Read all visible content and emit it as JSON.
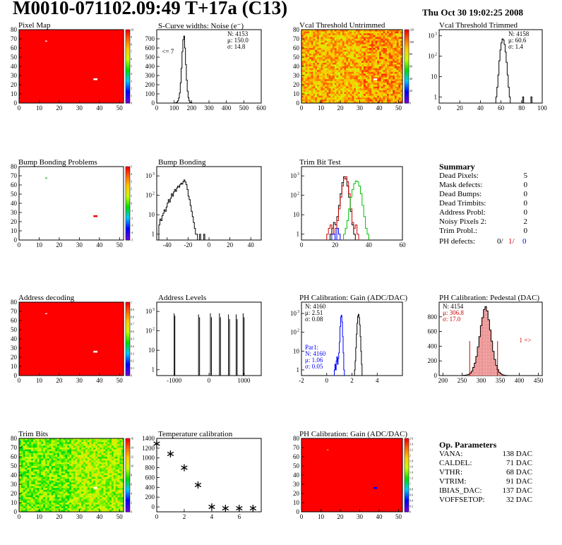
{
  "header": {
    "title": "M0010-071102.09:49 T+17a (C13)",
    "date": "Thu Oct 30 19:02:25 2008"
  },
  "colors": {
    "black": "#000000",
    "red": "#d00000",
    "green": "#00c000",
    "blue": "#0000ff"
  },
  "summary": {
    "title": "Summary",
    "rows": [
      {
        "label": "Dead Pixels:",
        "value": "5"
      },
      {
        "label": "Mask defects:",
        "value": "0"
      },
      {
        "label": "Dead Bumps:",
        "value": "0"
      },
      {
        "label": "Dead Trimbits:",
        "value": "0"
      },
      {
        "label": "Address Probl:",
        "value": "0"
      },
      {
        "label": "Noisy Pixels 2:",
        "value": "2"
      },
      {
        "label": "Trim Probl.:",
        "value": "0"
      }
    ],
    "ph_defects": {
      "label": "PH defects:",
      "v1": "0/",
      "v2": "1/",
      "v3": "0"
    }
  },
  "op_params": {
    "title": "Op. Parameters",
    "rows": [
      {
        "label": "VANA:",
        "value": "138 DAC"
      },
      {
        "label": "CALDEL:",
        "value": "71 DAC"
      },
      {
        "label": "VTHR:",
        "value": "68 DAC"
      },
      {
        "label": "VTRIM:",
        "value": "91 DAC"
      },
      {
        "label": "IBIAS_DAC:",
        "value": "137 DAC"
      },
      {
        "label": "VOFFSETOP:",
        "value": "32 DAC"
      }
    ]
  },
  "chart_data": [
    {
      "id": "pixel-map",
      "type": "heatmap",
      "title": "Pixel Map",
      "xlim": [
        0,
        52
      ],
      "ylim": [
        0,
        80
      ],
      "xticks": [
        0,
        10,
        20,
        30,
        40,
        50
      ],
      "yticks": [
        0,
        10,
        20,
        30,
        40,
        50,
        60,
        70,
        80
      ],
      "palette_ticks": [
        "0",
        "1",
        "2",
        "3",
        "4",
        "5",
        "6",
        "7",
        "8",
        "9",
        "10"
      ],
      "fill": "#ff0000",
      "spots": [
        {
          "x": 13,
          "y": 67,
          "w": 1,
          "h": 1,
          "color": "#ffffff"
        },
        {
          "x": 37,
          "y": 25,
          "w": 2,
          "h": 2,
          "color": "#ffffff"
        }
      ]
    },
    {
      "id": "scurve",
      "type": "histogram",
      "title": "S-Curve widths: Noise (e⁻)",
      "xlim": [
        0,
        600
      ],
      "ylim": [
        0,
        800
      ],
      "logy": false,
      "xticks": [
        0,
        100,
        200,
        300,
        400,
        500,
        600
      ],
      "yticks": [
        0,
        100,
        200,
        300,
        400,
        500,
        600,
        700
      ],
      "stats": [
        "N: 4153",
        "μ: 150.0",
        "σ: 14.8"
      ],
      "annotations": [
        {
          "text": "<= 7",
          "x": 30,
          "y": 540
        }
      ],
      "series": [
        {
          "color": "#000000",
          "x0": 0,
          "bw": 5,
          "values": [
            0,
            0,
            0,
            0,
            0,
            0,
            0,
            0,
            0,
            0,
            0,
            0,
            0,
            0,
            0,
            0,
            0,
            0,
            0,
            0,
            0,
            2,
            5,
            12,
            25,
            55,
            110,
            220,
            380,
            560,
            690,
            730,
            600,
            420,
            250,
            130,
            60,
            25,
            10,
            4,
            1,
            0
          ]
        }
      ]
    },
    {
      "id": "vcal-untrimmed",
      "type": "heatmap",
      "title": "Vcal Threshold Untrimmed",
      "xlim": [
        0,
        52
      ],
      "ylim": [
        0,
        80
      ],
      "xticks": [
        0,
        10,
        20,
        30,
        40,
        50
      ],
      "yticks": [
        0,
        10,
        20,
        30,
        40,
        50,
        60,
        70,
        80
      ],
      "palette_ticks": [
        "0",
        "20",
        "40",
        "60",
        "80",
        "100",
        "120"
      ],
      "noise": "warm",
      "spots": [
        {
          "x": 37,
          "y": 25,
          "w": 2,
          "h": 2,
          "color": "#ffffff"
        }
      ]
    },
    {
      "id": "vcal-trimmed",
      "type": "histogram",
      "title": "Vcal Threshold Trimmed",
      "xlim": [
        0,
        100
      ],
      "ylim": [
        0.5,
        2000
      ],
      "logy": true,
      "xticks": [
        0,
        20,
        40,
        60,
        80,
        100
      ],
      "yticks": [
        1,
        10,
        100,
        1000
      ],
      "stats": [
        "N: 4158",
        "μ: 60.6",
        "σ: 1.4"
      ],
      "series": [
        {
          "color": "#000000",
          "x0": 52,
          "bw": 1,
          "values": [
            0,
            0,
            0,
            1,
            3,
            12,
            60,
            200,
            450,
            700,
            620,
            380,
            160,
            50,
            12,
            3,
            1,
            0,
            0,
            0,
            0,
            0,
            0,
            0,
            0,
            0,
            0,
            0,
            0,
            1,
            0,
            0,
            0,
            0,
            0,
            0,
            0,
            1,
            0,
            0,
            0,
            0,
            0,
            0,
            0,
            0
          ]
        }
      ]
    },
    {
      "id": "bump-problems",
      "type": "heatmap",
      "title": "Bump Bonding Problems",
      "xlim": [
        0,
        52
      ],
      "ylim": [
        0,
        80
      ],
      "xticks": [
        0,
        10,
        20,
        30,
        40,
        50
      ],
      "yticks": [
        0,
        10,
        20,
        30,
        40,
        50,
        60,
        70,
        80
      ],
      "palette_ticks": [
        "-5",
        "-4",
        "-3",
        "-2",
        "-1",
        "0",
        "1",
        "2",
        "3",
        "4",
        "5"
      ],
      "fill": "#ffffff",
      "spots": [
        {
          "x": 13,
          "y": 67,
          "w": 1,
          "h": 1,
          "color": "#00c000"
        },
        {
          "x": 37,
          "y": 25,
          "w": 2,
          "h": 2,
          "color": "#ff0000"
        }
      ]
    },
    {
      "id": "bump-bonding",
      "type": "histogram",
      "title": "Bump Bonding",
      "xlim": [
        -50,
        50
      ],
      "ylim": [
        0.5,
        3000
      ],
      "logy": true,
      "xticks": [
        -40,
        -20,
        0,
        20,
        40
      ],
      "yticks": [
        1,
        10,
        100,
        1000
      ],
      "series": [
        {
          "color": "#000000",
          "x0": -50,
          "bw": 1,
          "values": [
            0,
            0,
            3,
            6,
            5,
            9,
            12,
            18,
            15,
            25,
            40,
            60,
            45,
            70,
            120,
            90,
            150,
            200,
            160,
            240,
            300,
            260,
            350,
            420,
            380,
            500,
            620,
            480,
            350,
            200,
            90,
            60,
            30,
            15,
            8,
            4,
            2,
            1,
            1,
            0,
            0,
            1,
            0,
            0,
            0,
            1,
            0,
            0,
            0,
            0
          ]
        }
      ]
    },
    {
      "id": "trim-bit-test",
      "type": "histogram",
      "title": "Trim Bit Test",
      "xlim": [
        0,
        60
      ],
      "ylim": [
        0.5,
        3000
      ],
      "logy": true,
      "xticks": [
        0,
        20,
        40,
        60
      ],
      "yticks": [
        1,
        10,
        100,
        1000
      ],
      "series": [
        {
          "color": "#000000",
          "x0": 17,
          "bw": 1,
          "values": [
            1,
            2,
            4,
            3,
            8,
            30,
            120,
            450,
            900,
            700,
            300,
            80,
            15,
            3,
            1
          ]
        },
        {
          "color": "#d00000",
          "x0": 15,
          "bw": 1,
          "values": [
            1,
            2,
            3,
            2,
            1,
            2,
            5,
            20,
            80,
            300,
            700,
            900,
            500,
            120,
            20,
            4,
            2,
            3,
            1
          ]
        },
        {
          "color": "#00c000",
          "x0": 25,
          "bw": 1,
          "values": [
            1,
            2,
            5,
            20,
            80,
            200,
            400,
            550,
            500,
            300,
            120,
            30,
            8,
            2,
            1
          ]
        },
        {
          "color": "#0000ff",
          "x0": 18,
          "bw": 1,
          "values": [
            1,
            1,
            0,
            2,
            1
          ]
        }
      ]
    },
    {
      "id": "address-decoding",
      "type": "heatmap",
      "title": "Address decoding",
      "xlim": [
        0,
        52
      ],
      "ylim": [
        0,
        80
      ],
      "xticks": [
        0,
        10,
        20,
        30,
        40,
        50
      ],
      "yticks": [
        0,
        10,
        20,
        30,
        40,
        50,
        60,
        70,
        80
      ],
      "palette_ticks": [
        "0",
        "0.1",
        "0.2",
        "0.3",
        "0.4",
        "0.5",
        "0.6",
        "0.7",
        "0.8",
        "0.9",
        "1"
      ],
      "fill": "#ff0000",
      "spots": [
        {
          "x": 13,
          "y": 67,
          "w": 1,
          "h": 1,
          "color": "#ffffff"
        },
        {
          "x": 37,
          "y": 25,
          "w": 2,
          "h": 2,
          "color": "#ffffff"
        }
      ]
    },
    {
      "id": "address-levels",
      "type": "histogram",
      "title": "Address Levels",
      "xlim": [
        -1500,
        1500
      ],
      "ylim": [
        0.5,
        3000
      ],
      "logy": true,
      "xticks": [
        -1000,
        0,
        1000
      ],
      "yticks": [
        1,
        10,
        100,
        1000
      ],
      "spikes": [
        {
          "x": -1000,
          "v": 800
        },
        {
          "x": -980,
          "v": 600
        },
        {
          "x": -300,
          "v": 700
        },
        {
          "x": -270,
          "v": 500
        },
        {
          "x": 40,
          "v": 800
        },
        {
          "x": 70,
          "v": 500
        },
        {
          "x": 300,
          "v": 800
        },
        {
          "x": 330,
          "v": 500
        },
        {
          "x": 560,
          "v": 700
        },
        {
          "x": 590,
          "v": 400
        },
        {
          "x": 780,
          "v": 700
        },
        {
          "x": 810,
          "v": 400
        },
        {
          "x": 980,
          "v": 800
        },
        {
          "x": 1010,
          "v": 500
        }
      ]
    },
    {
      "id": "ph-gain",
      "type": "histogram",
      "title": "PH Calibration: Gain (ADC/DAC)",
      "xlim": [
        -2,
        6
      ],
      "ylim": [
        0.5,
        4000
      ],
      "logy": true,
      "xticks": [
        -2,
        0,
        2,
        4
      ],
      "yticks": [
        1,
        10,
        100,
        1000
      ],
      "stats": [
        "N: 4160",
        "μ: 2.51",
        "σ: 0.08"
      ],
      "stats2": [
        "Par1:",
        "N: 4160",
        "μ: 1.06",
        "σ: 0.05"
      ],
      "series": [
        {
          "color": "#000000",
          "x0": 2.2,
          "bw": 0.05,
          "values": [
            1,
            3,
            15,
            80,
            300,
            700,
            900,
            600,
            250,
            60,
            10,
            2
          ]
        },
        {
          "color": "#0000ff",
          "x0": 0.6,
          "bw": 0.05,
          "values": [
            1,
            2,
            1,
            3,
            5,
            2,
            4,
            8,
            30,
            200,
            650,
            800,
            350,
            60,
            8,
            1
          ]
        }
      ]
    },
    {
      "id": "ph-pedestal",
      "type": "histogram",
      "title": "PH Calibration: Pedestal (DAC)",
      "xlim": [
        190,
        460
      ],
      "ylim": [
        0,
        1000
      ],
      "logy": false,
      "xticks": [
        200,
        250,
        300,
        350,
        400,
        450
      ],
      "yticks": [
        0,
        200,
        400,
        600,
        800
      ],
      "stats": [
        "N: 4154",
        "μ: 306.8",
        "σ: 17.0"
      ],
      "annotations": [
        {
          "text": "1 =>",
          "x": 400,
          "y": 450,
          "color": "#d00000"
        }
      ],
      "markers": [
        {
          "x": 270,
          "v": 470
        },
        {
          "x": 343,
          "v": 470
        }
      ],
      "series": [
        {
          "color": "#000000",
          "fill": "#f2b0b0",
          "x0": 250,
          "bw": 4,
          "values": [
            2,
            4,
            6,
            10,
            18,
            35,
            60,
            110,
            170,
            260,
            390,
            530,
            680,
            790,
            900,
            940,
            880,
            760,
            620,
            470,
            330,
            220,
            140,
            80,
            45,
            25,
            12,
            6,
            3,
            1
          ]
        }
      ]
    },
    {
      "id": "trim-bits",
      "type": "heatmap",
      "title": "Trim Bits",
      "xlim": [
        0,
        52
      ],
      "ylim": [
        0,
        80
      ],
      "xticks": [
        0,
        10,
        20,
        30,
        40,
        50
      ],
      "yticks": [
        0,
        10,
        20,
        30,
        40,
        50,
        60,
        70,
        80
      ],
      "palette_ticks": [
        "0",
        "2",
        "4",
        "6",
        "8",
        "10",
        "12",
        "14",
        "16"
      ],
      "noise": "green",
      "spots": [
        {
          "x": 37,
          "y": 25,
          "w": 2,
          "h": 2,
          "color": "#ffffff"
        }
      ]
    },
    {
      "id": "temperature",
      "type": "scatter",
      "title": "Temperature calibration",
      "xlim": [
        0,
        7.6
      ],
      "ylim": [
        -100,
        1400
      ],
      "xticks": [
        0,
        2,
        4,
        6
      ],
      "yticks": [
        0,
        200,
        400,
        600,
        800,
        1000,
        1200,
        1400
      ],
      "points": [
        [
          0,
          1290
        ],
        [
          1,
          1080
        ],
        [
          2,
          800
        ],
        [
          3,
          450
        ],
        [
          4,
          0
        ],
        [
          5,
          -30
        ],
        [
          6,
          -30
        ],
        [
          7,
          -30
        ]
      ]
    },
    {
      "id": "ph-gain-map",
      "type": "heatmap",
      "title": "PH Calibration: Gain (ADC/DAC)",
      "xlim": [
        0,
        52
      ],
      "ylim": [
        0,
        80
      ],
      "xticks": [
        0,
        10,
        20,
        30,
        40,
        50
      ],
      "yticks": [
        0,
        10,
        20,
        30,
        40,
        50,
        60,
        70,
        80
      ],
      "palette_ticks": [
        "0",
        "0.2",
        "0.4",
        "0.6",
        "0.8",
        "1",
        "1.2",
        "1.4",
        "1.6",
        "1.8",
        "2",
        "2.2",
        "2.4",
        "2.6"
      ],
      "fill": "#ff0000",
      "spots": [
        {
          "x": 13,
          "y": 67,
          "w": 1,
          "h": 1,
          "color": "#ffa000"
        },
        {
          "x": 37,
          "y": 25,
          "w": 2,
          "h": 2,
          "color": "#0000ff"
        }
      ]
    }
  ]
}
